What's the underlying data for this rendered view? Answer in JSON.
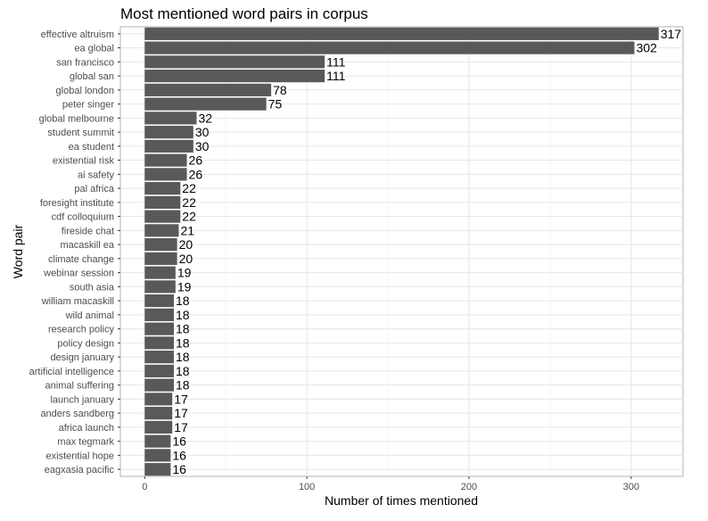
{
  "chart_data": {
    "type": "bar",
    "orientation": "horizontal",
    "title": "Most mentioned word pairs in corpus",
    "xlabel": "Number of times mentioned",
    "ylabel": "Word pair",
    "xlim": [
      -15,
      332
    ],
    "xticks": [
      0,
      100,
      200,
      300
    ],
    "grid": true,
    "legend": "none",
    "bar_color": "#595959",
    "categories": [
      "effective altruism",
      "ea global",
      "san francisco",
      "global san",
      "global london",
      "peter singer",
      "global melbourne",
      "student summit",
      "ea student",
      "existential risk",
      "ai safety",
      "pal africa",
      "foresight institute",
      "cdf colloquium",
      "fireside chat",
      "macaskill ea",
      "climate change",
      "webinar session",
      "south asia",
      "william macaskill",
      "wild animal",
      "research policy",
      "policy design",
      "design january",
      "artificial intelligence",
      "animal suffering",
      "launch january",
      "anders sandberg",
      "africa launch",
      "max tegmark",
      "existential hope",
      "eagxasia pacific"
    ],
    "values": [
      317,
      302,
      111,
      111,
      78,
      75,
      32,
      30,
      30,
      26,
      26,
      22,
      22,
      22,
      21,
      20,
      20,
      19,
      19,
      18,
      18,
      18,
      18,
      18,
      18,
      18,
      17,
      17,
      17,
      16,
      16,
      16
    ]
  }
}
